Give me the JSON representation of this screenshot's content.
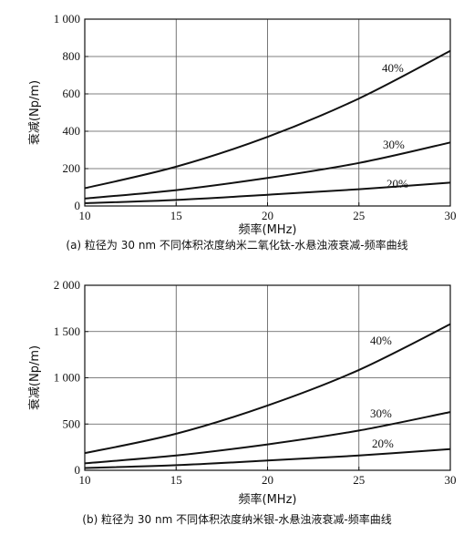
{
  "chart_data": [
    {
      "type": "line",
      "xlabel": "频率(MHz)",
      "ylabel": "衰减(Np/m)",
      "caption": "(a) 粒径为 30 nm 不同体积浓度纳米二氧化钛-水悬浊液衰减-频率曲线",
      "xlim": [
        10,
        30
      ],
      "ylim": [
        0,
        1000
      ],
      "xticks": [
        10,
        15,
        20,
        25,
        30
      ],
      "yticks": [
        0,
        200,
        400,
        600,
        800,
        1000
      ],
      "xtick_labels": [
        "10",
        "15",
        "20",
        "25",
        "30"
      ],
      "ytick_labels": [
        "0",
        "200",
        "400",
        "600",
        "800",
        "1 000"
      ],
      "grid": true,
      "x": [
        10,
        15,
        20,
        25,
        30
      ],
      "series": [
        {
          "name": "20%",
          "values": [
            15,
            32,
            60,
            90,
            125
          ]
        },
        {
          "name": "30%",
          "values": [
            40,
            85,
            150,
            230,
            340
          ]
        },
        {
          "name": "40%",
          "values": [
            95,
            210,
            370,
            575,
            830
          ]
        }
      ]
    },
    {
      "type": "line",
      "xlabel": "频率(MHz)",
      "ylabel": "衰减(Np/m)",
      "caption": "(b) 粒径为 30 nm 不同体积浓度纳米银-水悬浊液衰减-频率曲线",
      "xlim": [
        10,
        30
      ],
      "ylim": [
        0,
        2000
      ],
      "xticks": [
        10,
        15,
        20,
        25,
        30
      ],
      "yticks": [
        0,
        500,
        1000,
        1500,
        2000
      ],
      "xtick_labels": [
        "10",
        "15",
        "20",
        "25",
        "30"
      ],
      "ytick_labels": [
        "0",
        "500",
        "1 000",
        "1 500",
        "2 000"
      ],
      "grid": true,
      "x": [
        10,
        15,
        20,
        25,
        30
      ],
      "series": [
        {
          "name": "20%",
          "values": [
            25,
            55,
            105,
            160,
            230
          ]
        },
        {
          "name": "30%",
          "values": [
            75,
            160,
            280,
            430,
            630
          ]
        },
        {
          "name": "40%",
          "values": [
            185,
            395,
            700,
            1085,
            1580
          ]
        }
      ]
    }
  ]
}
